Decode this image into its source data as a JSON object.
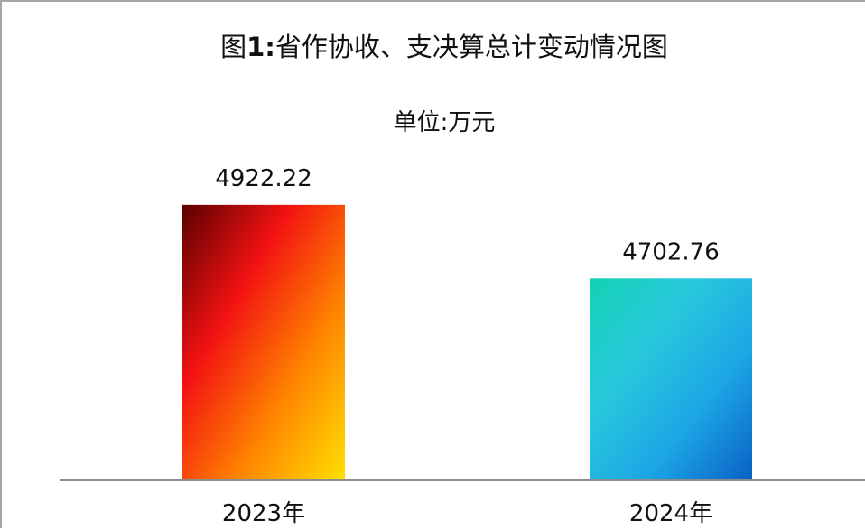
{
  "chart_data": {
    "type": "bar",
    "title_prefix": "图",
    "title_number": "1:",
    "title_suffix": "省作协收、支决算总计变动情况图",
    "subtitle": "单位:万元",
    "xlabel": "",
    "ylabel": "",
    "categories": [
      "2023年",
      "2024年"
    ],
    "values": [
      4922.22,
      4702.76
    ],
    "data_labels": [
      "4922.22",
      "4702.76"
    ],
    "ylim": [
      4100,
      5000
    ],
    "grid": false,
    "legend": "none",
    "series": [
      {
        "values": [
          4922.22,
          4702.76
        ],
        "gradients": [
          [
            "#5b0000",
            "#f21212",
            "#ff8500",
            "#ffe000"
          ],
          [
            "#13d2b3",
            "#28c9dc",
            "#1ca6e5",
            "#0a60c4"
          ]
        ]
      }
    ],
    "colors": {
      "axis": "#8c8c8c",
      "frame": "#a6a6a6",
      "text": "#111111"
    }
  }
}
